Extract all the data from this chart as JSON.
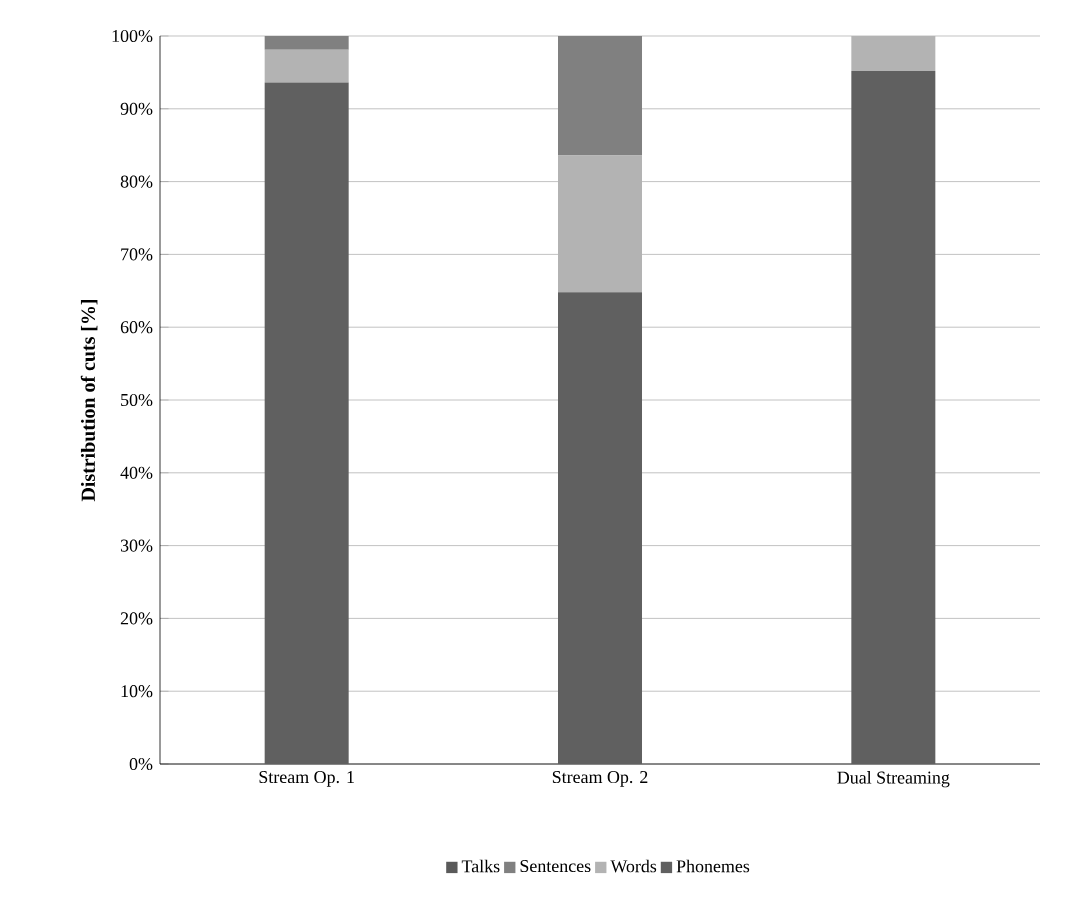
{
  "chart_data": {
    "type": "bar",
    "stacked": true,
    "ylabel": "Distribution of cuts [%]",
    "categories": [
      "Stream Op. 1",
      "Stream Op. 2",
      "Dual Streaming"
    ],
    "series": [
      {
        "name": "Phonemes",
        "color": "#606060",
        "values": [
          93.6,
          64.8,
          95.2
        ]
      },
      {
        "name": "Words",
        "color": "#b3b3b3",
        "values": [
          4.5,
          18.8,
          4.8
        ]
      },
      {
        "name": "Sentences",
        "color": "#808080",
        "values": [
          1.9,
          16.4,
          0
        ]
      },
      {
        "name": "Talks",
        "color": "#5a5a5a",
        "values": [
          0,
          0,
          0
        ]
      }
    ],
    "ylim": [
      0,
      100
    ],
    "yticks": [
      {
        "value": 0,
        "label": "0%"
      },
      {
        "value": 10,
        "label": "10%"
      },
      {
        "value": 20,
        "label": "20%"
      },
      {
        "value": 30,
        "label": "30%"
      },
      {
        "value": 40,
        "label": "40%"
      },
      {
        "value": 50,
        "label": "50%"
      },
      {
        "value": 60,
        "label": "60%"
      },
      {
        "value": 70,
        "label": "70%"
      },
      {
        "value": 80,
        "label": "80%"
      },
      {
        "value": 90,
        "label": "90%"
      },
      {
        "value": 100,
        "label": "100%"
      }
    ],
    "grid": "y",
    "legend": "bottom"
  }
}
